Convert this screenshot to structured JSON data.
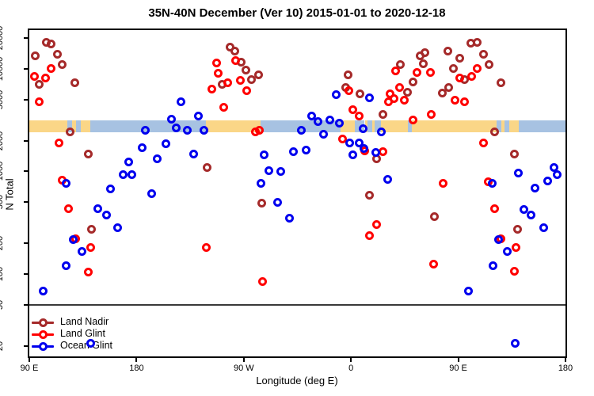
{
  "title": "35N-40N December (Ver 10)   2015-01-01 to 2020-12-18",
  "chart_data": {
    "type": "scatter",
    "title": "35N-40N December (Ver 10)   2015-01-01 to 2020-12-18",
    "xlabel": "Longitude (deg E)",
    "ylabel": "N Total",
    "y_scale": "log10",
    "ylim": [
      15,
      25000
    ],
    "y_ticks": [
      20000,
      10000,
      5000,
      2000,
      1000,
      500,
      200,
      100,
      50,
      20
    ],
    "x_axis": {
      "range": [
        90,
        540
      ],
      "tick_values": [
        90,
        180,
        270,
        360,
        450,
        540
      ],
      "tick_labels": [
        "90 E",
        "180",
        "90 W",
        "0",
        "90 E",
        "180"
      ]
    },
    "reference_line_n": 50,
    "map_band": {
      "n_top": 3150,
      "n_bottom": 2400,
      "land_color": "#FAD687",
      "ocean_color": "#A7C2E2",
      "segments": [
        {
          "from": 90,
          "to": 122,
          "surface": "land"
        },
        {
          "from": 122,
          "to": 126,
          "surface": "ocean"
        },
        {
          "from": 126,
          "to": 129,
          "surface": "land"
        },
        {
          "from": 129,
          "to": 133,
          "surface": "ocean"
        },
        {
          "from": 133,
          "to": 141,
          "surface": "land"
        },
        {
          "from": 141,
          "to": 238,
          "surface": "ocean"
        },
        {
          "from": 238,
          "to": 284,
          "surface": "land"
        },
        {
          "from": 284,
          "to": 351,
          "surface": "ocean"
        },
        {
          "from": 351,
          "to": 363,
          "surface": "land"
        },
        {
          "from": 363,
          "to": 371.5,
          "surface": "ocean"
        },
        {
          "from": 371.5,
          "to": 373.5,
          "surface": "land"
        },
        {
          "from": 373.5,
          "to": 378,
          "surface": "ocean"
        },
        {
          "from": 378,
          "to": 380,
          "surface": "land"
        },
        {
          "from": 380,
          "to": 385,
          "surface": "ocean"
        },
        {
          "from": 385,
          "to": 407.8,
          "surface": "land"
        },
        {
          "from": 407.8,
          "to": 411.2,
          "surface": "ocean"
        },
        {
          "from": 411.2,
          "to": 482,
          "surface": "land"
        },
        {
          "from": 482,
          "to": 486,
          "surface": "ocean"
        },
        {
          "from": 486,
          "to": 489,
          "surface": "land"
        },
        {
          "from": 489,
          "to": 493,
          "surface": "ocean"
        },
        {
          "from": 493,
          "to": 501,
          "surface": "land"
        },
        {
          "from": 501,
          "to": 540,
          "surface": "ocean"
        }
      ]
    },
    "series": [
      {
        "name": "Land Nadir",
        "color": "#A52A2A",
        "points": [
          [
            104,
            18000
          ],
          [
            108.6,
            17400
          ],
          [
            113.3,
            14000
          ],
          [
            117.9,
            11100
          ],
          [
            94.7,
            13300
          ],
          [
            98.6,
            7100
          ],
          [
            127.9,
            7300
          ],
          [
            123.9,
            2450
          ],
          [
            139.2,
            1490
          ],
          [
            258.2,
            16400
          ],
          [
            262.2,
            15000
          ],
          [
            267.5,
            11700
          ],
          [
            271.5,
            9800
          ],
          [
            282.2,
            8700
          ],
          [
            276.2,
            7900
          ],
          [
            251.6,
            7100
          ],
          [
            239,
            1100
          ],
          [
            284.8,
            495
          ],
          [
            142.5,
            275
          ],
          [
            357.3,
            8700
          ],
          [
            355.3,
            6600
          ],
          [
            367.3,
            5760
          ],
          [
            401.2,
            11100
          ],
          [
            417.8,
            13300
          ],
          [
            421.8,
            14300
          ],
          [
            420.4,
            11300
          ],
          [
            411.8,
            7500
          ],
          [
            407.1,
            5900
          ],
          [
            386.5,
            3570
          ],
          [
            381.2,
            1340
          ],
          [
            375.2,
            590
          ],
          [
            460.4,
            17800
          ],
          [
            465.7,
            18100
          ],
          [
            441.1,
            14800
          ],
          [
            471,
            13900
          ],
          [
            451.1,
            12800
          ],
          [
            475.7,
            11100
          ],
          [
            445.8,
            10000
          ],
          [
            455.1,
            7900
          ],
          [
            485.6,
            7300
          ],
          [
            441.8,
            6600
          ],
          [
            436.4,
            5800
          ],
          [
            480.3,
            2450
          ],
          [
            496.9,
            1490
          ],
          [
            429.8,
            360
          ],
          [
            499.6,
            275
          ]
        ]
      },
      {
        "name": "Land Glint",
        "color": "#FF0000",
        "points": [
          [
            94,
            8400
          ],
          [
            103.3,
            8200
          ],
          [
            108,
            10000
          ],
          [
            98.6,
            4820
          ],
          [
            114.6,
            1910
          ],
          [
            117.9,
            815
          ],
          [
            247.4,
            11400
          ],
          [
            263.3,
            12000
          ],
          [
            248.5,
            9000
          ],
          [
            256.2,
            7300
          ],
          [
            266.9,
            7700
          ],
          [
            243,
            6400
          ],
          [
            272.2,
            6100
          ],
          [
            252.9,
            4230
          ],
          [
            279.5,
            2440
          ],
          [
            282.8,
            2510
          ],
          [
            238.3,
            180
          ],
          [
            285.5,
            85
          ],
          [
            358,
            6080
          ],
          [
            397.2,
            9480
          ],
          [
            415.1,
            9300
          ],
          [
            426.4,
            9150
          ],
          [
            400.5,
            6640
          ],
          [
            392.5,
            5760
          ],
          [
            391.2,
            4740
          ],
          [
            395.8,
            5090
          ],
          [
            404.5,
            4910
          ],
          [
            361.3,
            3970
          ],
          [
            366.6,
            3500
          ],
          [
            411.8,
            3200
          ],
          [
            427.1,
            3600
          ],
          [
            352.6,
            2090
          ],
          [
            371.3,
            1600
          ],
          [
            386.5,
            1550
          ],
          [
            381.2,
            306
          ],
          [
            375.2,
            235
          ],
          [
            429.1,
            124
          ],
          [
            465.7,
            10000
          ],
          [
            461.1,
            8370
          ],
          [
            451.1,
            8100
          ],
          [
            447.1,
            4910
          ],
          [
            455.1,
            4820
          ],
          [
            471,
            1910
          ],
          [
            475,
            800
          ],
          [
            437.1,
            772
          ],
          [
            480.3,
            437
          ],
          [
            485.6,
            219
          ],
          [
            498.2,
            180
          ],
          [
            496.9,
            107
          ],
          [
            122.6,
            437
          ],
          [
            128.6,
            219
          ],
          [
            141.2,
            180
          ],
          [
            139.2,
            105
          ]
        ]
      },
      {
        "name": "Ocean Glint",
        "color": "#0000EE",
        "points": [
          [
            187.1,
            2500
          ],
          [
            204.4,
            1850
          ],
          [
            184.4,
            1690
          ],
          [
            197.1,
            1340
          ],
          [
            173.1,
            1230
          ],
          [
            168.5,
            923
          ],
          [
            176.4,
            923
          ],
          [
            121.2,
            772
          ],
          [
            157.8,
            680
          ],
          [
            192.4,
            610
          ],
          [
            217.4,
            4740
          ],
          [
            231.6,
            3440
          ],
          [
            209,
            3260
          ],
          [
            213,
            2680
          ],
          [
            222.3,
            2540
          ],
          [
            236.3,
            2500
          ],
          [
            227.6,
            1470
          ],
          [
            311.6,
            1570
          ],
          [
            286.8,
            1440
          ],
          [
            291.3,
            1010
          ],
          [
            300.8,
            991
          ],
          [
            284.2,
            772
          ],
          [
            318.1,
            2540
          ],
          [
            298.1,
            504
          ],
          [
            308.1,
            353
          ],
          [
            347.5,
            5560
          ],
          [
            375.4,
            5180
          ],
          [
            326.7,
            3440
          ],
          [
            332,
            3040
          ],
          [
            342.2,
            3150
          ],
          [
            350.4,
            2980
          ],
          [
            337.1,
            2300
          ],
          [
            370.4,
            2590
          ],
          [
            385.2,
            2440
          ],
          [
            358.6,
            1890
          ],
          [
            366.6,
            1890
          ],
          [
            371.1,
            1680
          ],
          [
            361.5,
            1440
          ],
          [
            380.7,
            1520
          ],
          [
            322.2,
            1630
          ],
          [
            391,
            840
          ],
          [
            500.2,
            960
          ],
          [
            530.1,
            1100
          ],
          [
            524.8,
            810
          ],
          [
            532.8,
            923
          ],
          [
            478.3,
            772
          ],
          [
            514.2,
            694
          ],
          [
            504.9,
            429
          ],
          [
            510.8,
            379
          ],
          [
            521.5,
            285
          ],
          [
            483.6,
            215
          ],
          [
            490.9,
            167
          ],
          [
            478.9,
            120
          ],
          [
            458.4,
            68
          ],
          [
            497.6,
            21
          ],
          [
            147.2,
            430
          ],
          [
            154.5,
            373
          ],
          [
            163.8,
            285
          ],
          [
            127.2,
            215
          ],
          [
            133.9,
            167
          ],
          [
            120.6,
            120
          ],
          [
            101.3,
            68
          ],
          [
            141.2,
            21
          ]
        ]
      }
    ],
    "legend": {
      "position": "bottom-left",
      "entries": [
        "Land Nadir",
        "Land Glint",
        "Ocean Glint"
      ]
    }
  }
}
